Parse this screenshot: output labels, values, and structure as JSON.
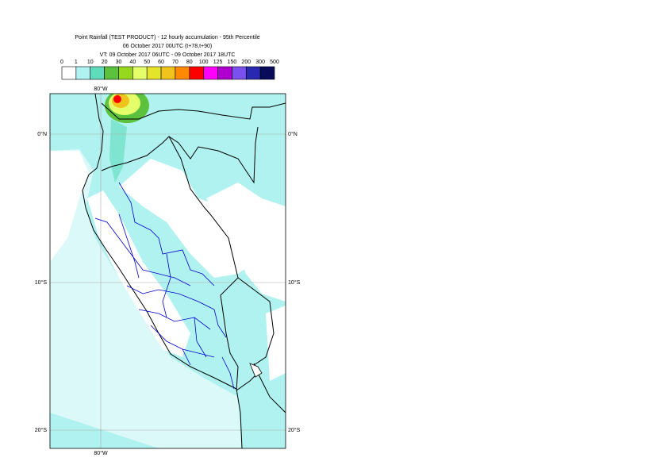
{
  "header": {
    "title": "Point Rainfall (TEST PRODUCT) - 12 hourly accumulation - 95th Percentile",
    "base_time": "06 October 2017 00UTC (t+78,t+90)",
    "valid_time": "VT: 09 October 2017 06UTC - 09 October 2017 18UTC"
  },
  "colorbar": {
    "ticks": [
      0,
      1,
      10,
      20,
      30,
      40,
      50,
      60,
      70,
      80,
      100,
      125,
      150,
      200,
      300,
      500
    ],
    "colors": [
      "#ffffff",
      "#b0f2f0",
      "#5fdcbc",
      "#5cc23e",
      "#96d81e",
      "#e4ff6a",
      "#e4e42c",
      "#f0c41c",
      "#ff8a00",
      "#ff0000",
      "#ff00ff",
      "#b000d0",
      "#7a50ee",
      "#2828b0",
      "#0a0a5a"
    ]
  },
  "map": {
    "lon_labels": [
      "80°W"
    ],
    "lat_labels": [
      "0°N",
      "10°S",
      "20°S"
    ]
  }
}
